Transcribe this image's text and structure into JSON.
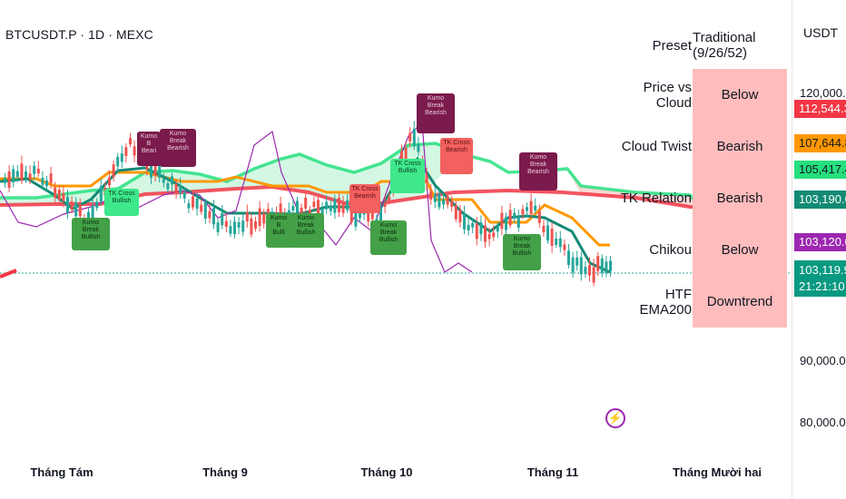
{
  "symbol_line": "BTCUSDT.P · 1D · MEXC",
  "currency": "USDT",
  "price_ticks": [
    "120,000.0",
    "90,000.0",
    "80,000.0"
  ],
  "price_tags": [
    {
      "text": "112,544.3",
      "bg": "#f23645",
      "light": true
    },
    {
      "text": "107,644.8",
      "bg": "#ff9800",
      "light": false
    },
    {
      "text": "105,417.4",
      "bg": "#26e07f",
      "light": false
    },
    {
      "text": "103,190.0",
      "bg": "#138a74",
      "light": true
    },
    {
      "text": "103,120.0",
      "bg": "#9c27b0",
      "light": true
    },
    {
      "text": "103,119.9",
      "bg": "#089981",
      "light": true,
      "sub": "21:21:10"
    }
  ],
  "time_labels": [
    "Tháng Tám",
    "Tháng 9",
    "Tháng 10",
    "Tháng 11",
    "Tháng Mười hai"
  ],
  "dashboard": {
    "header": {
      "label": "Preset",
      "value": "Traditional (9/26/52)"
    },
    "rows": [
      {
        "label": "Price vs Cloud",
        "value": "Below"
      },
      {
        "label": "Cloud Twist",
        "value": "Bearish"
      },
      {
        "label": "TK Relation",
        "value": "Bearish"
      },
      {
        "label": "Chikou",
        "value": "Below"
      },
      {
        "label": "HTF EMA200",
        "value": "Downtrend"
      }
    ]
  },
  "signal_labels": [
    {
      "lines": [
        "Kumo Break",
        "Bullish"
      ],
      "kind": "bull"
    },
    {
      "lines": [
        "TK Cross",
        "Bullish"
      ],
      "kind": "bull2"
    },
    {
      "lines": [
        "Kumo B",
        "Beari"
      ],
      "kind": "bear"
    },
    {
      "lines": [
        "Kumo Break",
        "Bearish"
      ],
      "kind": "bear"
    },
    {
      "lines": [
        "Kumo B",
        "Bulli"
      ],
      "kind": "bull"
    },
    {
      "lines": [
        "Kumo Break",
        "Bullish"
      ],
      "kind": "bull"
    },
    {
      "lines": [
        "TK Cross",
        "Bearish"
      ],
      "kind": "bear2"
    },
    {
      "lines": [
        "Kumo Break",
        "Bullish"
      ],
      "kind": "bull"
    },
    {
      "lines": [
        "TK Cross",
        "Bullish"
      ],
      "kind": "bull2"
    },
    {
      "lines": [
        "Kumo Break",
        "Bearish"
      ],
      "kind": "bear"
    },
    {
      "lines": [
        "TK Cross",
        "Bearish"
      ],
      "kind": "bear2"
    },
    {
      "lines": [
        "Kumo Break",
        "Bullish"
      ],
      "kind": "bull"
    },
    {
      "lines": [
        "Kumo Break",
        "Bearish"
      ],
      "kind": "bear"
    }
  ],
  "colors": {
    "up": "#26a69a",
    "down": "#ef5350",
    "kijun": "#ff9800",
    "tenkan": "#138a74",
    "senkou_a": "#26e07f",
    "senkou_b": "#f23645",
    "chikou": "#9c27b0",
    "cloud_bull": "#c8f5dc",
    "cloud_bear": "#fbd0d0"
  },
  "icons": [
    "lightning-icon"
  ]
}
